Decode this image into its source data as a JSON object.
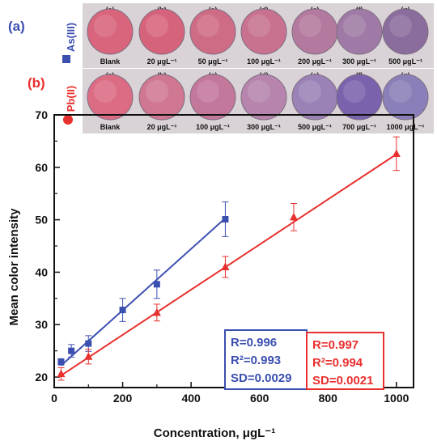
{
  "panels": {
    "a": {
      "label": "(a)",
      "analyte": "As(III)",
      "color": "#3b4fb0",
      "wells": [
        {
          "id": "(a)",
          "conc": "Blank",
          "color": "#d8657c"
        },
        {
          "id": "(b)",
          "conc": "20 μgL⁻¹",
          "color": "#d6637c"
        },
        {
          "id": "(c)",
          "conc": "50 μgL⁻¹",
          "color": "#cf6c85"
        },
        {
          "id": "(d)",
          "conc": "100 μgL⁻¹",
          "color": "#c87290"
        },
        {
          "id": "(e)",
          "conc": "200 μgL⁻¹",
          "color": "#b4799e"
        },
        {
          "id": "(f)",
          "conc": "300 μgL⁻¹",
          "color": "#a07aa6"
        },
        {
          "id": "(g)",
          "conc": "500 μgL⁻¹",
          "color": "#8a6d9d"
        }
      ]
    },
    "b": {
      "label": "(b)",
      "analyte": "Pb(II)",
      "color": "#e8302e",
      "wells": [
        {
          "id": "(a)",
          "conc": "Blank",
          "color": "#dc6c84"
        },
        {
          "id": "(b)",
          "conc": "20 μgL⁻¹",
          "color": "#d07891"
        },
        {
          "id": "(c)",
          "conc": "100 μgL⁻¹",
          "color": "#c3779b"
        },
        {
          "id": "(d)",
          "conc": "300 μgL⁻¹",
          "color": "#b684ad"
        },
        {
          "id": "(e)",
          "conc": "500 μgL⁻¹",
          "color": "#9a82b7"
        },
        {
          "id": "(f)",
          "conc": "700 μgL⁻¹",
          "color": "#7a62ad"
        },
        {
          "id": "(g)",
          "conc": "1000 μgL⁻¹",
          "color": "#8a7fb8"
        }
      ]
    }
  },
  "chart_data": {
    "type": "scatter",
    "xlabel": "Concentration, μgL⁻¹",
    "ylabel": "Mean color intensity",
    "xlim": [
      0,
      1050
    ],
    "ylim": [
      18,
      70
    ],
    "xticks": [
      0,
      200,
      400,
      600,
      800,
      1000
    ],
    "yticks": [
      20,
      30,
      40,
      50,
      60,
      70
    ],
    "series": [
      {
        "name": "As(III)",
        "color": "#3b4fb0",
        "marker": "square",
        "x": [
          20,
          50,
          100,
          200,
          300,
          500
        ],
        "y": [
          22.9,
          25.0,
          26.4,
          32.8,
          37.7,
          50.1
        ],
        "err": [
          0.6,
          1.2,
          1.5,
          2.2,
          2.7,
          3.3
        ],
        "fit": [
          [
            20,
            22.2
          ],
          [
            500,
            50.3
          ]
        ],
        "stats": [
          "R=0.996",
          "R²=0.993",
          "SD=0.0029"
        ]
      },
      {
        "name": "Pb(II)",
        "color": "#e8302e",
        "marker": "triangle",
        "x": [
          20,
          100,
          300,
          500,
          700,
          1000
        ],
        "y": [
          20.6,
          23.9,
          32.3,
          41.0,
          50.5,
          62.6
        ],
        "err": [
          1.2,
          1.4,
          1.6,
          2.0,
          2.6,
          3.2
        ],
        "fit": [
          [
            20,
            20.3
          ],
          [
            1000,
            62.5
          ]
        ],
        "stats": [
          "R=0.997",
          "R²=0.994",
          "SD=0.0021"
        ]
      }
    ]
  }
}
